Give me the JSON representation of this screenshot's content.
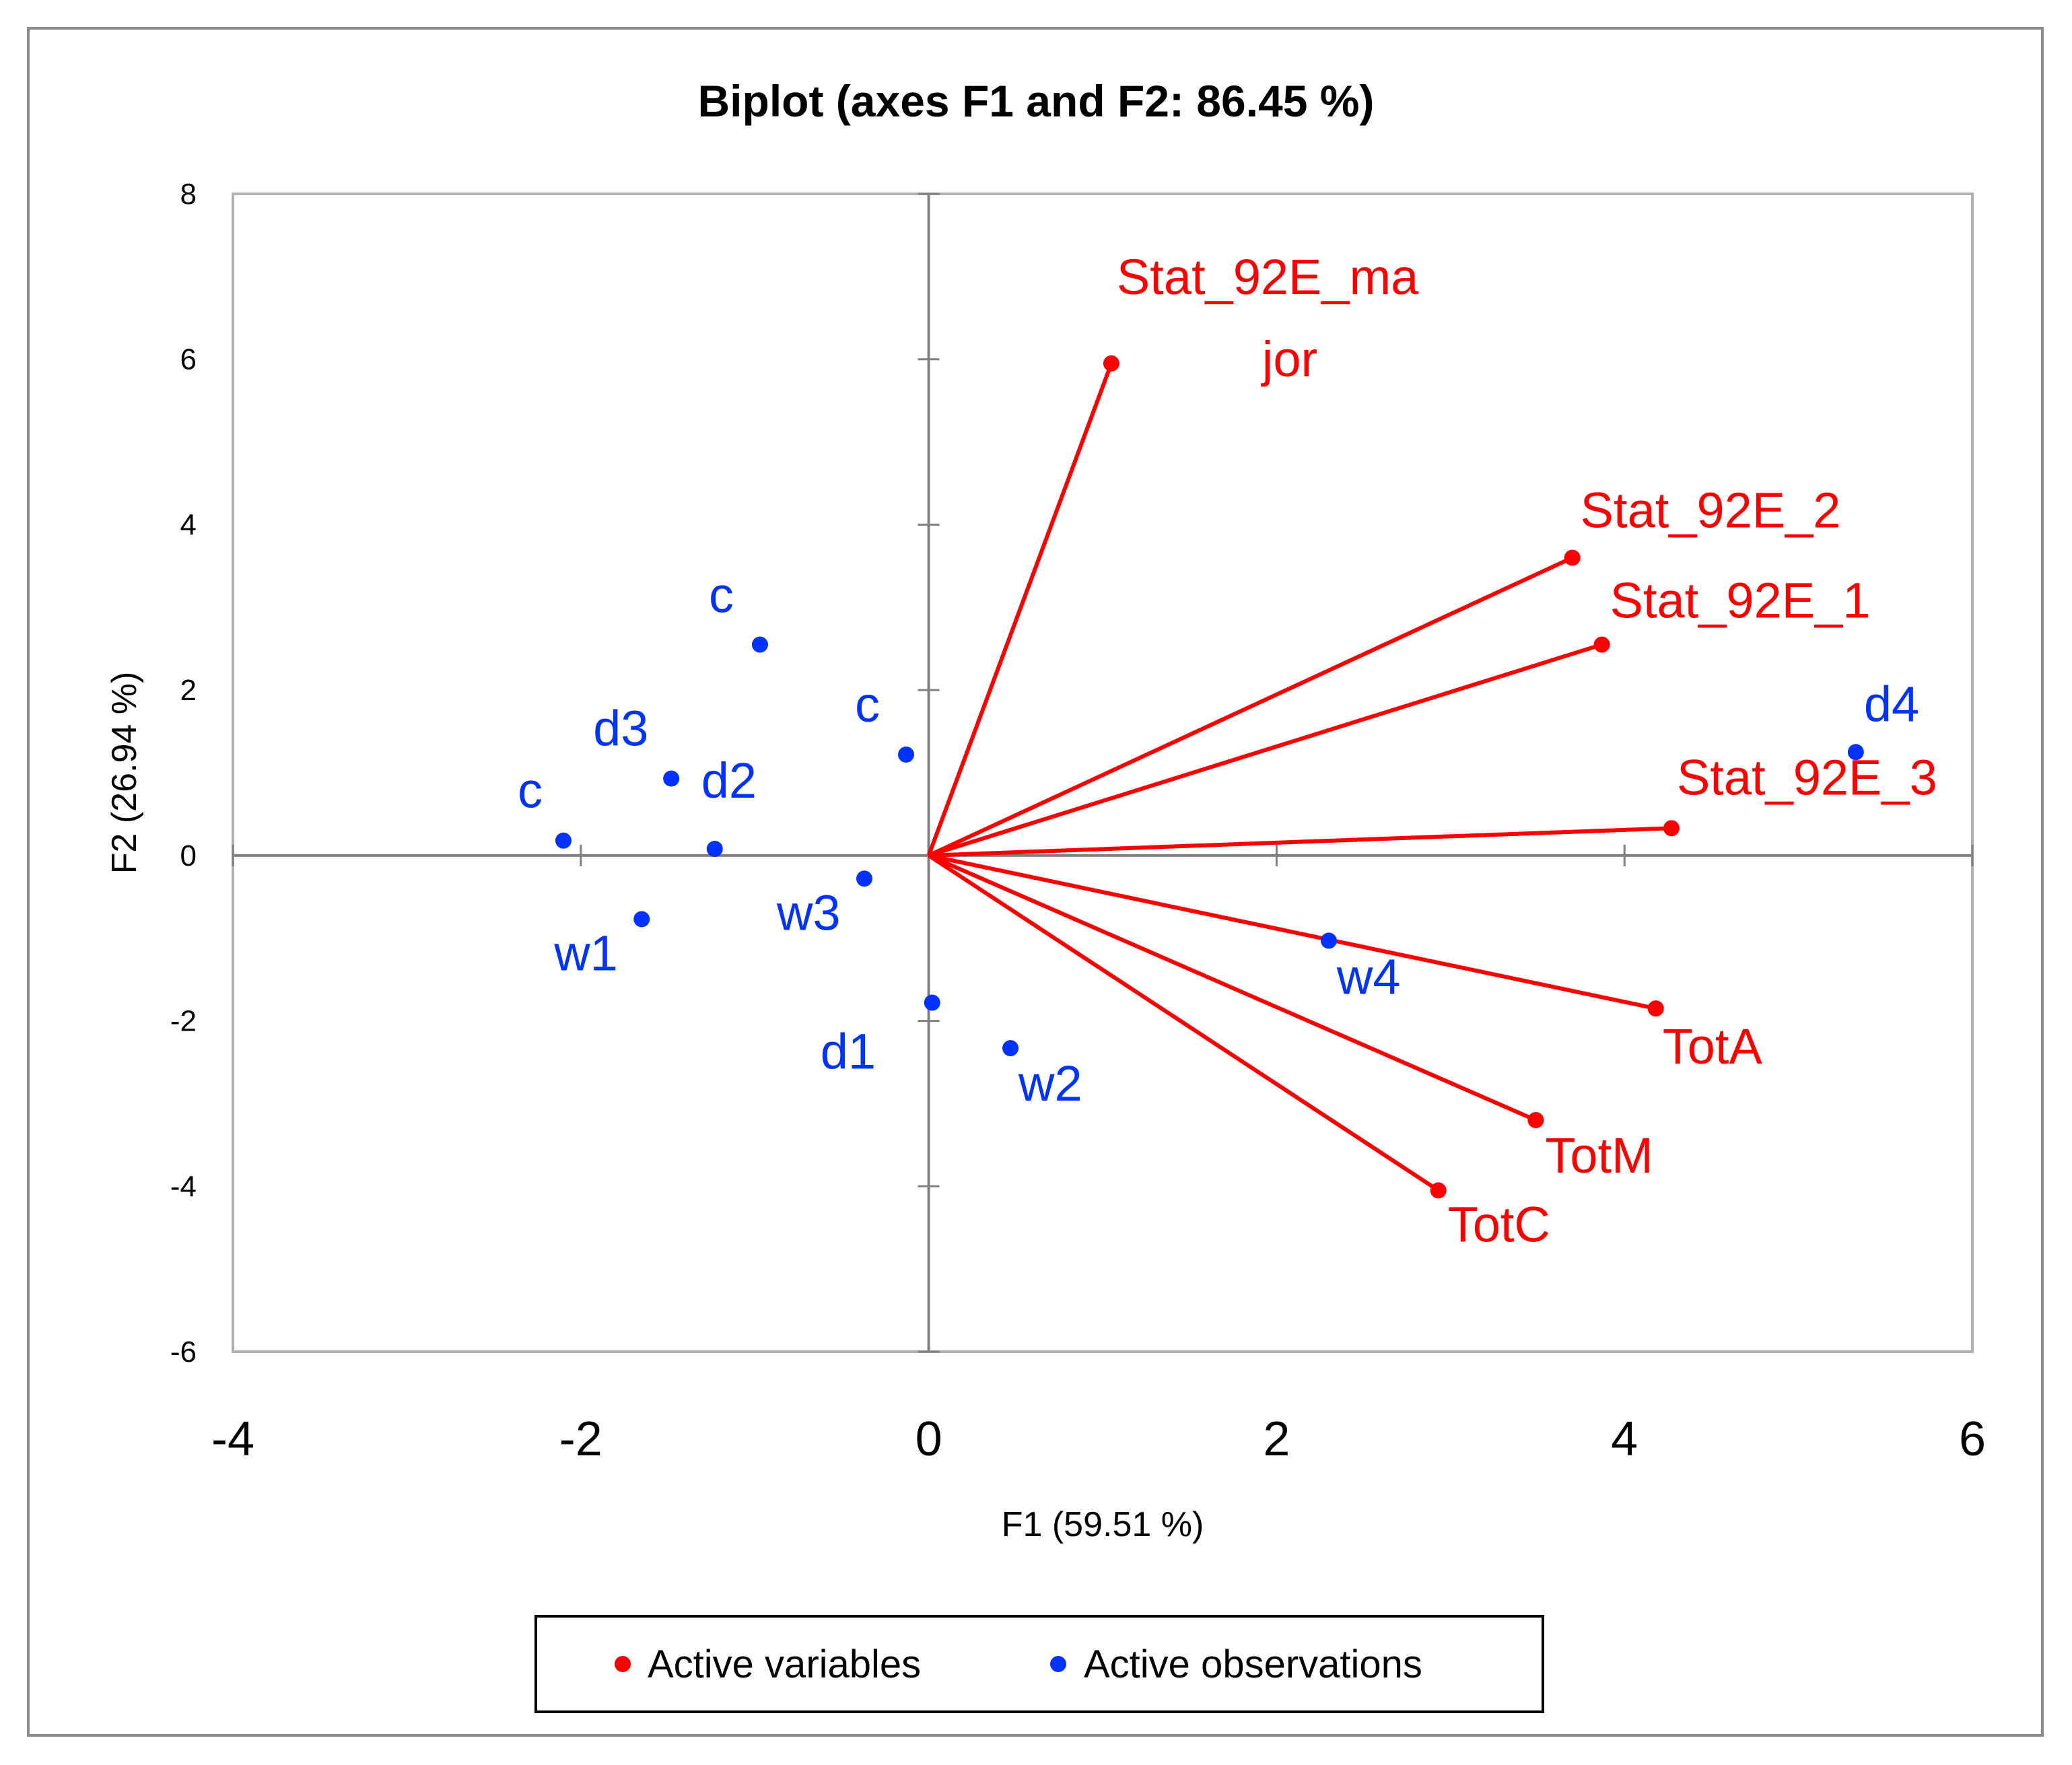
{
  "chart_data": {
    "type": "scatter",
    "subtype": "pca-biplot",
    "title": "Biplot (axes F1 and F2: 86.45 %)",
    "xlabel": "F1 (59.51 %)",
    "ylabel": "F2 (26.94 %)",
    "xlim": [
      -4,
      6
    ],
    "ylim": [
      -6,
      8
    ],
    "xticks": [
      -4,
      -2,
      0,
      2,
      4,
      6
    ],
    "yticks": [
      -6,
      -4,
      -2,
      0,
      2,
      4,
      6,
      8
    ],
    "grid": false,
    "legend_position": "bottom",
    "colors": {
      "variables": "#ff0000",
      "observations": "#0033ff",
      "axis": "#808080"
    },
    "series": [
      {
        "name": "Active variables",
        "points": [
          {
            "label": "Stat_92E_major",
            "label_lines": [
              "Stat_92E_ma",
              "jor"
            ],
            "x": 1.05,
            "y": 5.95
          },
          {
            "label": "Stat_92E_2",
            "x": 3.7,
            "y": 3.6
          },
          {
            "label": "Stat_92E_1",
            "x": 3.87,
            "y": 2.55
          },
          {
            "label": "Stat_92E_3",
            "x": 4.27,
            "y": 0.33
          },
          {
            "label": "TotA",
            "x": 4.18,
            "y": -1.85
          },
          {
            "label": "TotM",
            "x": 3.49,
            "y": -3.2
          },
          {
            "label": "TotC",
            "x": 2.93,
            "y": -4.05
          }
        ]
      },
      {
        "name": "Active observations",
        "points": [
          {
            "label": "c",
            "x": -0.97,
            "y": 2.55
          },
          {
            "label": "c",
            "x": -0.13,
            "y": 1.22
          },
          {
            "label": "c",
            "x": -2.1,
            "y": 0.18
          },
          {
            "label": "d3",
            "x": -1.48,
            "y": 0.93
          },
          {
            "label": "d2",
            "x": -1.23,
            "y": 0.08
          },
          {
            "label": "w1",
            "x": -1.65,
            "y": -0.77
          },
          {
            "label": "w3",
            "x": -0.37,
            "y": -0.28
          },
          {
            "label": "d1",
            "x": 0.02,
            "y": -1.78
          },
          {
            "label": "w2",
            "x": 0.47,
            "y": -2.33
          },
          {
            "label": "w4",
            "x": 2.3,
            "y": -1.03
          },
          {
            "label": "d4",
            "x": 5.33,
            "y": 1.25
          }
        ]
      }
    ]
  }
}
